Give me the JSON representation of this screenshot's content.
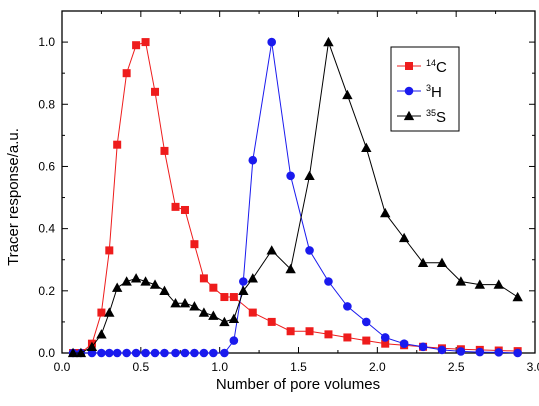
{
  "chart_data": {
    "type": "line",
    "title": "",
    "xlabel": "Number of pore volumes",
    "ylabel": "Tracer response/a.u.",
    "xlim": [
      0,
      3.0
    ],
    "ylim": [
      0,
      1.1
    ],
    "xticks": [
      0.0,
      0.5,
      1.0,
      1.5,
      2.0,
      2.5,
      3.0
    ],
    "xtick_labels": [
      "0.0",
      "0.5",
      "1.0",
      "1.5",
      "2.0",
      "2.5",
      "3.0"
    ],
    "yticks": [
      0.0,
      0.2,
      0.4,
      0.6,
      0.8,
      1.0
    ],
    "ytick_labels": [
      "0.0",
      "0.2",
      "0.4",
      "0.6",
      "0.8",
      "1.0"
    ],
    "grid": false,
    "legend_position": "top-right",
    "series": [
      {
        "name": "14C",
        "name_sup": "14",
        "name_base": "C",
        "color": "#ee1c1c",
        "marker": "square",
        "x": [
          0.07,
          0.12,
          0.19,
          0.25,
          0.3,
          0.35,
          0.41,
          0.47,
          0.53,
          0.59,
          0.65,
          0.72,
          0.78,
          0.84,
          0.9,
          0.96,
          1.03,
          1.09,
          1.21,
          1.33,
          1.45,
          1.57,
          1.69,
          1.81,
          1.93,
          2.05,
          2.17,
          2.29,
          2.41,
          2.53,
          2.65,
          2.77,
          2.89
        ],
        "y": [
          0.0,
          0.0,
          0.03,
          0.13,
          0.33,
          0.67,
          0.9,
          0.99,
          1.0,
          0.84,
          0.65,
          0.47,
          0.46,
          0.35,
          0.24,
          0.21,
          0.18,
          0.18,
          0.13,
          0.1,
          0.07,
          0.07,
          0.06,
          0.05,
          0.04,
          0.03,
          0.025,
          0.02,
          0.015,
          0.012,
          0.01,
          0.008,
          0.006
        ]
      },
      {
        "name": "3H",
        "name_sup": "3",
        "name_base": "H",
        "color": "#1a1aee",
        "marker": "circle",
        "x": [
          0.07,
          0.12,
          0.19,
          0.25,
          0.3,
          0.35,
          0.41,
          0.47,
          0.53,
          0.59,
          0.65,
          0.72,
          0.78,
          0.84,
          0.9,
          0.96,
          1.03,
          1.09,
          1.15,
          1.21,
          1.33,
          1.45,
          1.57,
          1.69,
          1.81,
          1.93,
          2.05,
          2.17,
          2.29,
          2.41,
          2.53,
          2.65,
          2.77,
          2.89
        ],
        "y": [
          0.0,
          0.0,
          0.0,
          0.0,
          0.0,
          0.0,
          0.0,
          0.0,
          0.0,
          0.0,
          0.0,
          0.0,
          0.0,
          0.0,
          0.0,
          0.0,
          0.0,
          0.04,
          0.23,
          0.62,
          1.0,
          0.57,
          0.33,
          0.23,
          0.15,
          0.1,
          0.05,
          0.03,
          0.02,
          0.01,
          0.005,
          0.003,
          0.002,
          0.0
        ]
      },
      {
        "name": "35S",
        "name_sup": "35",
        "name_base": "S",
        "color": "#000000",
        "marker": "triangle",
        "x": [
          0.07,
          0.12,
          0.19,
          0.25,
          0.3,
          0.35,
          0.41,
          0.47,
          0.53,
          0.59,
          0.65,
          0.72,
          0.78,
          0.84,
          0.9,
          0.96,
          1.03,
          1.09,
          1.15,
          1.21,
          1.33,
          1.45,
          1.57,
          1.69,
          1.81,
          1.93,
          2.05,
          2.17,
          2.29,
          2.41,
          2.53,
          2.65,
          2.77,
          2.89
        ],
        "y": [
          0.0,
          0.0,
          0.02,
          0.06,
          0.13,
          0.21,
          0.23,
          0.24,
          0.23,
          0.22,
          0.2,
          0.16,
          0.16,
          0.15,
          0.13,
          0.12,
          0.1,
          0.11,
          0.2,
          0.24,
          0.33,
          0.27,
          0.57,
          1.0,
          0.83,
          0.66,
          0.45,
          0.37,
          0.29,
          0.29,
          0.23,
          0.22,
          0.22,
          0.18
        ]
      }
    ]
  }
}
